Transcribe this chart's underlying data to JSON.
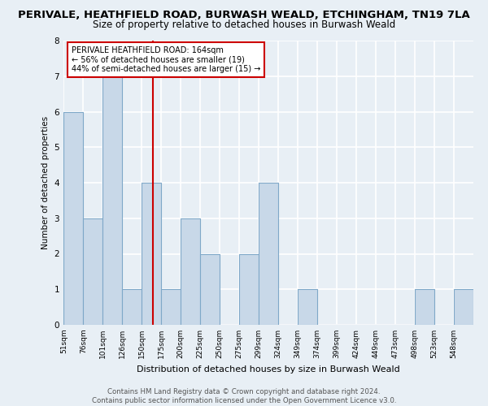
{
  "title_line1": "PERIVALE, HEATHFIELD ROAD, BURWASH WEALD, ETCHINGHAM, TN19 7LA",
  "title_line2": "Size of property relative to detached houses in Burwash Weald",
  "xlabel": "Distribution of detached houses by size in Burwash Weald",
  "ylabel": "Number of detached properties",
  "bin_labels": [
    "51sqm",
    "76sqm",
    "101sqm",
    "126sqm",
    "150sqm",
    "175sqm",
    "200sqm",
    "225sqm",
    "250sqm",
    "275sqm",
    "299sqm",
    "324sqm",
    "349sqm",
    "374sqm",
    "399sqm",
    "424sqm",
    "449sqm",
    "473sqm",
    "498sqm",
    "523sqm",
    "548sqm"
  ],
  "bar_heights": [
    6,
    3,
    7,
    1,
    4,
    1,
    3,
    2,
    0,
    2,
    4,
    0,
    1,
    0,
    0,
    0,
    0,
    0,
    1,
    0,
    1
  ],
  "bar_color": "#c8d8e8",
  "bar_edge_color": "#7fa8c8",
  "vline_color": "#cc0000",
  "vline_sqm": 164,
  "annotation_line1": "PERIVALE HEATHFIELD ROAD: 164sqm",
  "annotation_line2": "← 56% of detached houses are smaller (19)",
  "annotation_line3": "44% of semi-detached houses are larger (15) →",
  "annotation_box_color": "#ffffff",
  "annotation_box_edge": "#cc0000",
  "ylim": [
    0,
    8
  ],
  "yticks": [
    0,
    1,
    2,
    3,
    4,
    5,
    6,
    7,
    8
  ],
  "footer_text": "Contains HM Land Registry data © Crown copyright and database right 2024.\nContains public sector information licensed under the Open Government Licence v3.0.",
  "background_color": "#e8eff5",
  "grid_color": "#ffffff"
}
